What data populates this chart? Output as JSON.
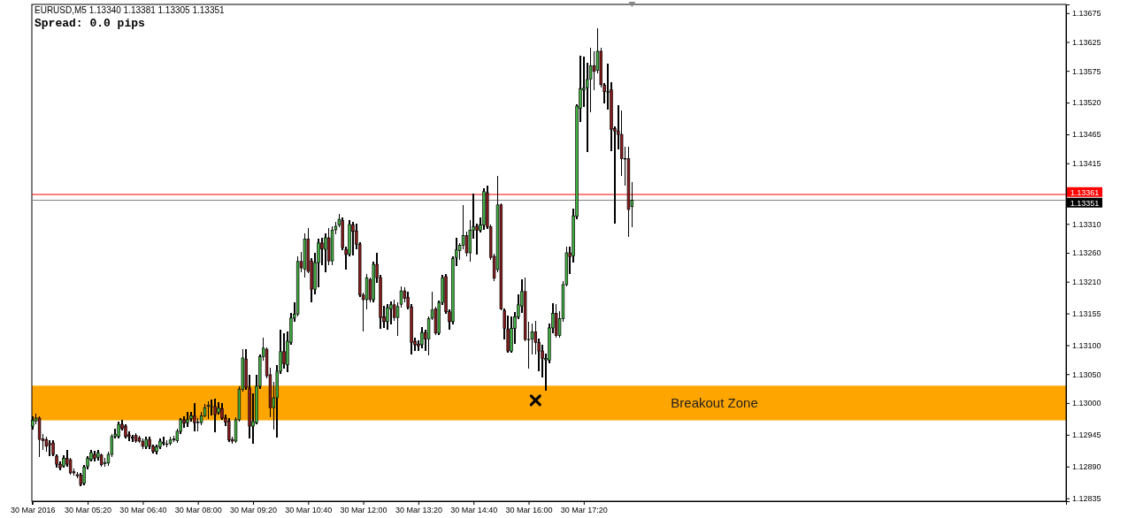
{
  "chart_data": {
    "type": "candlestick",
    "title": "EURUSD,M5  1.13340 1.13381 1.13305 1.13351",
    "annotations": [
      "Spread: 0.0 pips"
    ],
    "x": [
      "2016-03-30T04:00",
      "2016-03-30T04:05",
      "2016-03-30T04:10",
      "2016-03-30T04:15",
      "2016-03-30T04:20",
      "2016-03-30T04:25",
      "2016-03-30T04:30",
      "2016-03-30T04:35",
      "2016-03-30T04:40",
      "2016-03-30T04:45",
      "2016-03-30T04:50",
      "2016-03-30T04:55",
      "2016-03-30T05:00",
      "2016-03-30T05:05",
      "2016-03-30T05:10",
      "2016-03-30T05:15",
      "2016-03-30T05:20",
      "2016-03-30T05:25",
      "2016-03-30T05:30",
      "2016-03-30T05:35",
      "2016-03-30T05:40",
      "2016-03-30T05:45",
      "2016-03-30T05:50",
      "2016-03-30T05:55",
      "2016-03-30T06:00",
      "2016-03-30T06:05",
      "2016-03-30T06:10",
      "2016-03-30T06:15",
      "2016-03-30T06:20",
      "2016-03-30T06:25",
      "2016-03-30T06:30",
      "2016-03-30T06:35",
      "2016-03-30T06:40",
      "2016-03-30T06:45",
      "2016-03-30T06:50",
      "2016-03-30T06:55",
      "2016-03-30T07:00",
      "2016-03-30T07:05",
      "2016-03-30T07:10",
      "2016-03-30T07:15",
      "2016-03-30T07:20",
      "2016-03-30T07:25",
      "2016-03-30T07:30",
      "2016-03-30T07:35",
      "2016-03-30T07:40",
      "2016-03-30T07:45",
      "2016-03-30T07:50",
      "2016-03-30T07:55",
      "2016-03-30T08:00",
      "2016-03-30T08:05",
      "2016-03-30T08:10",
      "2016-03-30T08:15",
      "2016-03-30T08:20",
      "2016-03-30T08:25",
      "2016-03-30T08:30",
      "2016-03-30T08:35",
      "2016-03-30T08:40",
      "2016-03-30T08:45",
      "2016-03-30T08:50",
      "2016-03-30T08:55",
      "2016-03-30T09:00",
      "2016-03-30T09:05",
      "2016-03-30T09:10",
      "2016-03-30T09:15",
      "2016-03-30T09:20",
      "2016-03-30T09:25",
      "2016-03-30T09:30",
      "2016-03-30T09:35",
      "2016-03-30T09:40",
      "2016-03-30T09:45",
      "2016-03-30T09:50",
      "2016-03-30T09:55",
      "2016-03-30T10:00",
      "2016-03-30T10:05",
      "2016-03-30T10:10",
      "2016-03-30T10:15",
      "2016-03-30T10:20",
      "2016-03-30T10:25",
      "2016-03-30T10:30",
      "2016-03-30T10:35",
      "2016-03-30T10:40",
      "2016-03-30T10:45",
      "2016-03-30T10:50",
      "2016-03-30T10:55",
      "2016-03-30T11:00",
      "2016-03-30T11:05",
      "2016-03-30T11:10",
      "2016-03-30T11:15",
      "2016-03-30T11:20",
      "2016-03-30T11:25",
      "2016-03-30T11:30",
      "2016-03-30T11:35",
      "2016-03-30T11:40",
      "2016-03-30T11:45",
      "2016-03-30T11:50",
      "2016-03-30T11:55",
      "2016-03-30T12:00",
      "2016-03-30T12:05",
      "2016-03-30T12:10",
      "2016-03-30T12:15",
      "2016-03-30T12:20",
      "2016-03-30T12:25",
      "2016-03-30T12:30",
      "2016-03-30T12:35",
      "2016-03-30T12:40",
      "2016-03-30T12:45",
      "2016-03-30T12:50",
      "2016-03-30T12:55",
      "2016-03-30T13:00",
      "2016-03-30T13:05",
      "2016-03-30T13:10",
      "2016-03-30T13:15",
      "2016-03-30T13:20",
      "2016-03-30T13:25",
      "2016-03-30T13:30",
      "2016-03-30T13:35",
      "2016-03-30T13:40",
      "2016-03-30T13:45",
      "2016-03-30T13:50",
      "2016-03-30T13:55",
      "2016-03-30T14:00",
      "2016-03-30T14:05",
      "2016-03-30T14:10",
      "2016-03-30T14:15",
      "2016-03-30T14:20",
      "2016-03-30T14:25",
      "2016-03-30T14:30",
      "2016-03-30T14:35",
      "2016-03-30T14:40",
      "2016-03-30T14:45",
      "2016-03-30T14:50",
      "2016-03-30T14:55",
      "2016-03-30T15:00",
      "2016-03-30T15:05",
      "2016-03-30T15:10",
      "2016-03-30T15:15",
      "2016-03-30T15:20",
      "2016-03-30T15:25",
      "2016-03-30T15:30",
      "2016-03-30T15:35",
      "2016-03-30T15:40",
      "2016-03-30T15:45",
      "2016-03-30T15:50",
      "2016-03-30T15:55",
      "2016-03-30T16:00",
      "2016-03-30T16:05",
      "2016-03-30T16:10",
      "2016-03-30T16:15",
      "2016-03-30T16:20",
      "2016-03-30T16:25",
      "2016-03-30T16:30",
      "2016-03-30T16:35",
      "2016-03-30T16:40",
      "2016-03-30T16:45",
      "2016-03-30T16:50",
      "2016-03-30T16:55",
      "2016-03-30T17:00",
      "2016-03-30T17:05",
      "2016-03-30T17:10",
      "2016-03-30T17:15",
      "2016-03-30T17:20",
      "2016-03-30T17:25",
      "2016-03-30T17:30",
      "2016-03-30T17:35",
      "2016-03-30T17:40",
      "2016-03-30T17:45",
      "2016-03-30T17:50",
      "2016-03-30T17:55",
      "2016-03-30T18:00",
      "2016-03-30T18:05",
      "2016-03-30T18:10",
      "2016-03-30T18:15",
      "2016-03-30T18:20",
      "2016-03-30T18:25",
      "2016-03-30T18:30"
    ],
    "ohlc": [
      [
        1.1296,
        1.12975,
        1.12955,
        1.1297
      ],
      [
        1.12969,
        1.1298,
        1.12965,
        1.12974
      ],
      [
        1.12974,
        1.12976,
        1.12907,
        1.12937
      ],
      [
        1.12938,
        1.12945,
        1.1292,
        1.12935
      ],
      [
        1.12937,
        1.1294,
        1.12917,
        1.12925
      ],
      [
        1.1293,
        1.12934,
        1.1291,
        1.12927
      ],
      [
        1.12931,
        1.12934,
        1.1291,
        1.12911
      ],
      [
        1.12908,
        1.1291,
        1.1289,
        1.12894
      ],
      [
        1.12894,
        1.12897,
        1.12885,
        1.12888
      ],
      [
        1.12891,
        1.12908,
        1.1289,
        1.12904
      ],
      [
        1.12904,
        1.12918,
        1.12891,
        1.12894
      ],
      [
        1.12902,
        1.12904,
        1.12877,
        1.12879
      ],
      [
        1.12881,
        1.12885,
        1.12876,
        1.12879
      ],
      [
        1.12876,
        1.1288,
        1.12871,
        1.12874
      ],
      [
        1.12875,
        1.12877,
        1.12857,
        1.12859
      ],
      [
        1.12861,
        1.12891,
        1.12859,
        1.12889
      ],
      [
        1.1289,
        1.12907,
        1.12887,
        1.12904
      ],
      [
        1.12902,
        1.12917,
        1.129,
        1.12914
      ],
      [
        1.12911,
        1.12916,
        1.129,
        1.12904
      ],
      [
        1.12906,
        1.12918,
        1.12902,
        1.12914
      ],
      [
        1.1291,
        1.12912,
        1.12891,
        1.12893
      ],
      [
        1.12895,
        1.12903,
        1.12891,
        1.12897
      ],
      [
        1.12896,
        1.12915,
        1.12893,
        1.12911
      ],
      [
        1.12911,
        1.12945,
        1.12908,
        1.12942
      ],
      [
        1.12942,
        1.12954,
        1.1294,
        1.12946
      ],
      [
        1.12942,
        1.12966,
        1.1294,
        1.12963
      ],
      [
        1.12963,
        1.12969,
        1.12954,
        1.12956
      ],
      [
        1.1296,
        1.12962,
        1.1294,
        1.12942
      ],
      [
        1.12945,
        1.1295,
        1.12936,
        1.12942
      ],
      [
        1.12941,
        1.12944,
        1.12934,
        1.12939
      ],
      [
        1.12944,
        1.12947,
        1.12932,
        1.12934
      ],
      [
        1.1294,
        1.12942,
        1.12932,
        1.12934
      ],
      [
        1.12934,
        1.12937,
        1.12922,
        1.12925
      ],
      [
        1.12924,
        1.1294,
        1.12922,
        1.12937
      ],
      [
        1.12937,
        1.1294,
        1.12922,
        1.12925
      ],
      [
        1.12925,
        1.12927,
        1.12914,
        1.12916
      ],
      [
        1.12916,
        1.12927,
        1.12913,
        1.12924
      ],
      [
        1.12924,
        1.12937,
        1.12922,
        1.12934
      ],
      [
        1.1293,
        1.1294,
        1.12927,
        1.12932
      ],
      [
        1.12929,
        1.12934,
        1.12924,
        1.12929
      ],
      [
        1.1293,
        1.1294,
        1.12928,
        1.12936
      ],
      [
        1.12936,
        1.12942,
        1.12934,
        1.12938
      ],
      [
        1.12935,
        1.12954,
        1.12932,
        1.12951
      ],
      [
        1.12951,
        1.12972,
        1.12947,
        1.12971
      ],
      [
        1.12971,
        1.12976,
        1.12959,
        1.12965
      ],
      [
        1.12966,
        1.12983,
        1.1296,
        1.12971
      ],
      [
        1.12973,
        1.12984,
        1.12969,
        1.12978
      ],
      [
        1.12978,
        1.12998,
        1.12952,
        1.12966
      ],
      [
        1.12966,
        1.12972,
        1.12952,
        1.12967
      ],
      [
        1.12966,
        1.12984,
        1.12963,
        1.12978
      ],
      [
        1.12978,
        1.12997,
        1.12976,
        1.12992
      ],
      [
        1.12994,
        1.13002,
        1.12973,
        1.12996
      ],
      [
        1.12994,
        1.13004,
        1.1298,
        1.12994
      ],
      [
        1.12994,
        1.13006,
        1.12951,
        1.1298
      ],
      [
        1.12984,
        1.13,
        1.12981,
        1.12991
      ],
      [
        1.1299,
        1.12999,
        1.12972,
        1.12974
      ],
      [
        1.12974,
        1.12978,
        1.12962,
        1.12967
      ],
      [
        1.12969,
        1.12973,
        1.12934,
        1.12936
      ],
      [
        1.12937,
        1.1294,
        1.1293,
        1.12934
      ],
      [
        1.12934,
        1.12974,
        1.12932,
        1.12971
      ],
      [
        1.12971,
        1.13027,
        1.12969,
        1.13024
      ],
      [
        1.13024,
        1.13092,
        1.13021,
        1.13078
      ],
      [
        1.13076,
        1.13092,
        1.13024,
        1.13027
      ],
      [
        1.13026,
        1.13047,
        1.1294,
        1.1296
      ],
      [
        1.1296,
        1.13015,
        1.12931,
        1.12968
      ],
      [
        1.12966,
        1.13047,
        1.12964,
        1.13029
      ],
      [
        1.13029,
        1.13083,
        1.13026,
        1.1308
      ],
      [
        1.1308,
        1.13112,
        1.13075,
        1.13095
      ],
      [
        1.13093,
        1.13095,
        1.13044,
        1.13047
      ],
      [
        1.13049,
        1.1306,
        1.12977,
        1.12992
      ],
      [
        1.12992,
        1.13035,
        1.12955,
        1.13009
      ],
      [
        1.13009,
        1.13065,
        1.12942,
        1.13055
      ],
      [
        1.13055,
        1.13125,
        1.13052,
        1.13089
      ],
      [
        1.13089,
        1.13119,
        1.13061,
        1.13068
      ],
      [
        1.13066,
        1.13122,
        1.13054,
        1.13107
      ],
      [
        1.13105,
        1.13154,
        1.13102,
        1.13147
      ],
      [
        1.13147,
        1.13173,
        1.13142,
        1.13154
      ],
      [
        1.13154,
        1.13253,
        1.13151,
        1.13245
      ],
      [
        1.13245,
        1.1326,
        1.13227,
        1.13234
      ],
      [
        1.13232,
        1.13292,
        1.13219,
        1.13284
      ],
      [
        1.13284,
        1.13302,
        1.13226,
        1.13228
      ],
      [
        1.13246,
        1.1325,
        1.13176,
        1.13197
      ],
      [
        1.13197,
        1.13259,
        1.13189,
        1.13243
      ],
      [
        1.13243,
        1.13284,
        1.13202,
        1.13277
      ],
      [
        1.13277,
        1.13285,
        1.1324,
        1.13267
      ],
      [
        1.13266,
        1.13293,
        1.13227,
        1.13286
      ],
      [
        1.13286,
        1.13302,
        1.1324,
        1.13246
      ],
      [
        1.13246,
        1.13305,
        1.1324,
        1.13299
      ],
      [
        1.133,
        1.13313,
        1.13293,
        1.13306
      ],
      [
        1.13308,
        1.13326,
        1.13305,
        1.13318
      ],
      [
        1.13316,
        1.1332,
        1.13266,
        1.13269
      ],
      [
        1.13266,
        1.1327,
        1.13232,
        1.13257
      ],
      [
        1.13258,
        1.13315,
        1.13255,
        1.13309
      ],
      [
        1.13308,
        1.13313,
        1.13257,
        1.13297
      ],
      [
        1.13298,
        1.1331,
        1.13268,
        1.13275
      ],
      [
        1.13275,
        1.13277,
        1.13184,
        1.13187
      ],
      [
        1.13187,
        1.1319,
        1.13125,
        1.13179
      ],
      [
        1.13179,
        1.13222,
        1.13164,
        1.13217
      ],
      [
        1.13214,
        1.13216,
        1.13176,
        1.13179
      ],
      [
        1.13179,
        1.13244,
        1.13176,
        1.1324
      ],
      [
        1.1324,
        1.13259,
        1.13209,
        1.13217
      ],
      [
        1.13217,
        1.1322,
        1.1313,
        1.13148
      ],
      [
        1.13149,
        1.13167,
        1.13131,
        1.13141
      ],
      [
        1.13141,
        1.1317,
        1.13128,
        1.13165
      ],
      [
        1.13163,
        1.13175,
        1.13138,
        1.1317
      ],
      [
        1.1317,
        1.13177,
        1.13143,
        1.13148
      ],
      [
        1.13148,
        1.13173,
        1.13117,
        1.13167
      ],
      [
        1.13171,
        1.132,
        1.13166,
        1.13194
      ],
      [
        1.13194,
        1.13199,
        1.13176,
        1.13181
      ],
      [
        1.13183,
        1.13192,
        1.13163,
        1.13166
      ],
      [
        1.13166,
        1.1317,
        1.13086,
        1.13105
      ],
      [
        1.13107,
        1.13112,
        1.13091,
        1.13101
      ],
      [
        1.13102,
        1.13107,
        1.13092,
        1.13099
      ],
      [
        1.13101,
        1.13131,
        1.13096,
        1.13122
      ],
      [
        1.13122,
        1.13125,
        1.13091,
        1.13111
      ],
      [
        1.13111,
        1.13149,
        1.13083,
        1.13146
      ],
      [
        1.13147,
        1.13191,
        1.13145,
        1.13161
      ],
      [
        1.13163,
        1.13165,
        1.13119,
        1.13121
      ],
      [
        1.13121,
        1.13176,
        1.13119,
        1.13174
      ],
      [
        1.13174,
        1.1322,
        1.13171,
        1.13217
      ],
      [
        1.13219,
        1.13222,
        1.13155,
        1.13158
      ],
      [
        1.13158,
        1.13161,
        1.13128,
        1.13141
      ],
      [
        1.13141,
        1.13253,
        1.13138,
        1.1325
      ],
      [
        1.13252,
        1.13285,
        1.13238,
        1.13265
      ],
      [
        1.13264,
        1.13275,
        1.13249,
        1.13273
      ],
      [
        1.13273,
        1.13341,
        1.13268,
        1.1329
      ],
      [
        1.1329,
        1.13295,
        1.13255,
        1.1326
      ],
      [
        1.1326,
        1.13316,
        1.13246,
        1.13299
      ],
      [
        1.13299,
        1.13362,
        1.13286,
        1.13305
      ],
      [
        1.13306,
        1.13309,
        1.13258,
        1.13299
      ],
      [
        1.13299,
        1.1332,
        1.13296,
        1.13308
      ],
      [
        1.13308,
        1.1337,
        1.13301,
        1.13366
      ],
      [
        1.13364,
        1.13375,
        1.13303,
        1.13305
      ],
      [
        1.13305,
        1.13307,
        1.13249,
        1.13252
      ],
      [
        1.13254,
        1.13257,
        1.13212,
        1.13216
      ],
      [
        1.13231,
        1.13392,
        1.13228,
        1.13343
      ],
      [
        1.13343,
        1.13345,
        1.13161,
        1.13163
      ],
      [
        1.1316,
        1.13162,
        1.13111,
        1.13129
      ],
      [
        1.13128,
        1.1315,
        1.13088,
        1.1309
      ],
      [
        1.1309,
        1.13149,
        1.13088,
        1.13129
      ],
      [
        1.13129,
        1.13157,
        1.13104,
        1.13149
      ],
      [
        1.13149,
        1.13187,
        1.13146,
        1.1317
      ],
      [
        1.13168,
        1.13213,
        1.13157,
        1.13193
      ],
      [
        1.13193,
        1.13216,
        1.13108,
        1.1311
      ],
      [
        1.1311,
        1.13139,
        1.1306,
        1.1311
      ],
      [
        1.13111,
        1.13136,
        1.13085,
        1.13123
      ],
      [
        1.13123,
        1.13141,
        1.13085,
        1.13105
      ],
      [
        1.13105,
        1.1311,
        1.13056,
        1.1309
      ],
      [
        1.1309,
        1.131,
        1.13046,
        1.13077
      ],
      [
        1.13075,
        1.13085,
        1.13022,
        1.13077
      ],
      [
        1.13074,
        1.13136,
        1.1307,
        1.1313
      ],
      [
        1.1313,
        1.13171,
        1.13122,
        1.13155
      ],
      [
        1.13155,
        1.1317,
        1.13114,
        1.13117
      ],
      [
        1.13117,
        1.13158,
        1.13114,
        1.13146
      ],
      [
        1.13146,
        1.1321,
        1.13142,
        1.13205
      ],
      [
        1.13205,
        1.1327,
        1.13203,
        1.1326
      ],
      [
        1.1326,
        1.13269,
        1.13225,
        1.13253
      ],
      [
        1.13255,
        1.13335,
        1.13245,
        1.13324
      ],
      [
        1.13323,
        1.13516,
        1.1332,
        1.13514
      ],
      [
        1.1351,
        1.136,
        1.13488,
        1.13544
      ],
      [
        1.13542,
        1.13598,
        1.13514,
        1.13545
      ],
      [
        1.13546,
        1.13588,
        1.13435,
        1.1356
      ],
      [
        1.13561,
        1.13614,
        1.13505,
        1.13584
      ],
      [
        1.13584,
        1.13607,
        1.13543,
        1.13574
      ],
      [
        1.13576,
        1.13648,
        1.13572,
        1.13609
      ],
      [
        1.13609,
        1.13614,
        1.13548,
        1.13551
      ],
      [
        1.1355,
        1.13553,
        1.1352,
        1.13539
      ],
      [
        1.13538,
        1.13587,
        1.13509,
        1.13539
      ],
      [
        1.13542,
        1.13554,
        1.13437,
        1.13474
      ],
      [
        1.13475,
        1.13478,
        1.13312,
        1.13471
      ],
      [
        1.13471,
        1.13514,
        1.13441,
        1.13465
      ],
      [
        1.13465,
        1.13505,
        1.13395,
        1.13423
      ],
      [
        1.13423,
        1.13443,
        1.13377,
        1.13423
      ],
      [
        1.13423,
        1.13443,
        1.13289,
        1.13335
      ],
      [
        1.1334,
        1.13381,
        1.13305,
        1.13351
      ]
    ],
    "colors": [
      "#41b341",
      "#41b341",
      "#8b1a1a",
      "#8b1a1a",
      "#8b1a1a",
      "#8b1a1a",
      "#8b1a1a",
      "#8b1a1a",
      "#8b1a1a",
      "#41b341",
      "#8b1a1a",
      "#8b1a1a",
      "#8b1a1a",
      "#8b1a1a",
      "#8b1a1a",
      "#41b341",
      "#41b341",
      "#41b341",
      "#8b1a1a",
      "#41b341",
      "#8b1a1a",
      "#41b341",
      "#41b341",
      "#41b341",
      "#41b341",
      "#41b341",
      "#8b1a1a",
      "#8b1a1a",
      "#8b1a1a",
      "#8b1a1a",
      "#8b1a1a",
      "#8b1a1a",
      "#8b1a1a",
      "#41b341",
      "#8b1a1a",
      "#8b1a1a",
      "#41b341",
      "#41b341",
      "#41b341",
      "#41b341",
      "#41b341",
      "#41b341",
      "#41b341",
      "#41b341",
      "#8b1a1a",
      "#41b341",
      "#41b341",
      "#8b1a1a",
      "#41b341",
      "#41b341",
      "#41b341",
      "#41b341",
      "#41b341",
      "#8b1a1a",
      "#41b341",
      "#8b1a1a",
      "#8b1a1a",
      "#8b1a1a",
      "#8b1a1a",
      "#41b341",
      "#41b341",
      "#41b341",
      "#8b1a1a",
      "#8b1a1a",
      "#41b341",
      "#41b341",
      "#41b341",
      "#41b341",
      "#8b1a1a",
      "#8b1a1a",
      "#41b341",
      "#41b341",
      "#41b341",
      "#8b1a1a",
      "#41b341",
      "#41b341",
      "#41b341",
      "#41b341",
      "#8b1a1a",
      "#41b341",
      "#8b1a1a",
      "#8b1a1a",
      "#41b341",
      "#41b341",
      "#8b1a1a",
      "#41b341",
      "#8b1a1a",
      "#41b341",
      "#41b341",
      "#41b341",
      "#8b1a1a",
      "#8b1a1a",
      "#41b341",
      "#8b1a1a",
      "#8b1a1a",
      "#8b1a1a",
      "#8b1a1a",
      "#41b341",
      "#8b1a1a",
      "#41b341",
      "#8b1a1a",
      "#8b1a1a",
      "#8b1a1a",
      "#41b341",
      "#41b341",
      "#8b1a1a",
      "#41b341",
      "#41b341",
      "#8b1a1a",
      "#8b1a1a",
      "#8b1a1a",
      "#8b1a1a",
      "#8b1a1a",
      "#41b341",
      "#8b1a1a",
      "#41b341",
      "#41b341",
      "#8b1a1a",
      "#41b341",
      "#41b341",
      "#8b1a1a",
      "#8b1a1a",
      "#41b341",
      "#41b341",
      "#41b341",
      "#41b341",
      "#8b1a1a",
      "#41b341",
      "#41b341",
      "#8b1a1a",
      "#41b341",
      "#41b341",
      "#8b1a1a",
      "#8b1a1a",
      "#8b1a1a",
      "#41b341",
      "#8b1a1a",
      "#8b1a1a",
      "#8b1a1a",
      "#41b341",
      "#41b341",
      "#41b341",
      "#41b341",
      "#8b1a1a",
      "#8b1a1a",
      "#41b341",
      "#8b1a1a",
      "#8b1a1a",
      "#8b1a1a",
      "#41b341",
      "#41b341",
      "#41b341",
      "#8b1a1a",
      "#41b341",
      "#41b341",
      "#41b341",
      "#8b1a1a",
      "#41b341",
      "#41b341",
      "#41b341",
      "#41b341",
      "#41b341",
      "#41b341",
      "#8b1a1a",
      "#41b341",
      "#8b1a1a",
      "#8b1a1a",
      "#41b341",
      "#8b1a1a",
      "#8b1a1a",
      "#8b1a1a",
      "#8b1a1a",
      "#8b1a1a",
      "#8b1a1a",
      "#41b341"
    ],
    "xlim": [
      "2016-03-30T03:59",
      "2016-03-31T05:00"
    ],
    "xticks": [
      {
        "value": "2016-03-30T04:00",
        "label": "30 Mar 2016"
      },
      {
        "value": "2016-03-30T05:20",
        "label": "30 Mar 05:20"
      },
      {
        "value": "2016-03-30T06:40",
        "label": "30 Mar 06:40"
      },
      {
        "value": "2016-03-30T08:00",
        "label": "30 Mar 08:00"
      },
      {
        "value": "2016-03-30T09:20",
        "label": "30 Mar 09:20"
      },
      {
        "value": "2016-03-30T10:40",
        "label": "30 Mar 10:40"
      },
      {
        "value": "2016-03-30T12:00",
        "label": "30 Mar 12:00"
      },
      {
        "value": "2016-03-30T13:20",
        "label": "30 Mar 13:20"
      },
      {
        "value": "2016-03-30T14:40",
        "label": "30 Mar 14:40"
      },
      {
        "value": "2016-03-30T16:00",
        "label": "30 Mar 16:00"
      },
      {
        "value": "2016-03-30T17:20",
        "label": "30 Mar 17:20"
      }
    ],
    "ylim": [
      1.1283,
      1.1369
    ],
    "yticks": [
      1.13675,
      1.13625,
      1.13575,
      {
        "value": 1.1352,
        "label": "1.13520"
      },
      1.13465,
      1.13415,
      {
        "value": 1.1331,
        "label": "1.13310"
      },
      {
        "value": 1.1326,
        "label": "1.13260"
      },
      {
        "value": 1.1321,
        "label": "1.13210"
      },
      1.13155,
      {
        "value": 1.131,
        "label": "1.13100"
      },
      {
        "value": 1.1305,
        "label": "1.13050"
      },
      {
        "value": 1.13,
        "label": "1.13000"
      },
      1.12945,
      {
        "value": 1.1289,
        "label": "1.12890"
      },
      1.12835
    ],
    "ref_lines": [
      {
        "axis": "y",
        "value": 1.13361,
        "label": "1.13361",
        "color": "#ff0000"
      },
      {
        "axis": "y",
        "value": 1.13351,
        "label": "1.13351",
        "color": "#808080"
      }
    ],
    "bands": [
      {
        "axis": "y",
        "from": 1.1297,
        "to": 1.1303,
        "label": "Breakout Zone",
        "color": "#ffa500"
      }
    ]
  }
}
